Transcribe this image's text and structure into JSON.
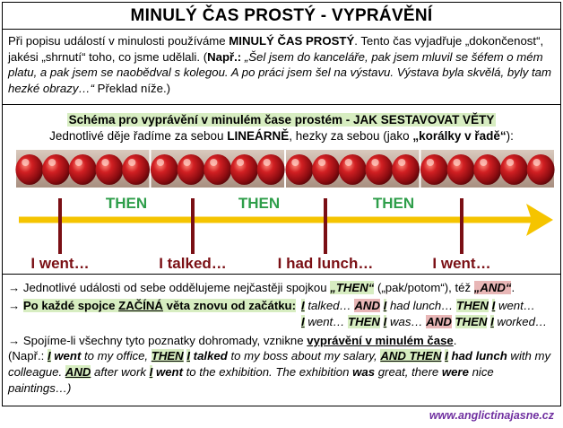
{
  "title": "MINULÝ ČAS PROSTÝ - VYPRÁVĚNÍ",
  "intro": {
    "p1": "Při popisu událostí v minulosti používáme ",
    "p1_bold": "MINULÝ ČAS PROSTÝ",
    "p2": ". Tento čas vyjadřuje „dokončenost“, jakési „shrnutí“ toho, co jsme udělali. (",
    "p2_bold": "Např.:",
    "p3_italic": " „Šel jsem do kanceláře, pak jsem mluvil se šéfem o mém platu, a pak jsem se naobědval s kolegou. A po práci jsem šel na výstavu. Výstava byla skvělá, byly tam hezké obrazy…“",
    "p4": " Překlad níže.)"
  },
  "schema": {
    "title": "Schéma pro vyprávění v minulém čase prostém - JAK SESTAVOVAT VĚTY",
    "sub1": "Jednotlivé děje řadíme za sebou ",
    "sub1_bold": "LINEÁRNĚ",
    "sub2": ", hezky za sebou (jako ",
    "sub2_bold": "„korálky v řadě“",
    "sub3": "):"
  },
  "timeline": {
    "then_labels": [
      "THEN",
      "THEN",
      "THEN"
    ],
    "event_labels": [
      "I went…",
      "I talked…",
      "I had lunch…",
      "I went…"
    ],
    "colors": {
      "arrow": "#f5c400",
      "then": "#2e9e4a",
      "tick": "#7a0f14",
      "bead": "#b8141c"
    }
  },
  "bottom": {
    "line1_a": "→ Jednotlivé události od sebe oddělujeme nejčastěji spojkou ",
    "line1_then": "„THEN“",
    "line1_b": " („pak/potom“), též ",
    "line1_and": "„AND“",
    "line1_c": ".",
    "line2_arrow": "→ ",
    "line2_hl": "Po každé spojce ",
    "line2_hl_ul": "ZAČÍNÁ",
    "line2_hl2": " věta znovu od začátku:",
    "ex_row1": [
      {
        "t": "I",
        "c": "boxi"
      },
      {
        "t": " talked… ",
        "c": "i"
      },
      {
        "t": "AND",
        "c": "red-hl"
      },
      {
        "t": " ",
        "c": ""
      },
      {
        "t": "I",
        "c": "boxi"
      },
      {
        "t": " had lunch… ",
        "c": "i"
      },
      {
        "t": "THEN",
        "c": "grn-i"
      },
      {
        "t": " ",
        "c": ""
      },
      {
        "t": "I",
        "c": "boxi"
      },
      {
        "t": " went…",
        "c": "i"
      }
    ],
    "ex_row2": [
      {
        "t": "I",
        "c": "boxi"
      },
      {
        "t": " went… ",
        "c": "i"
      },
      {
        "t": "THEN",
        "c": "grn-i"
      },
      {
        "t": " ",
        "c": ""
      },
      {
        "t": "I",
        "c": "boxi"
      },
      {
        "t": " was… ",
        "c": "i"
      },
      {
        "t": "AND",
        "c": "red-hl"
      },
      {
        "t": " ",
        "c": ""
      },
      {
        "t": "THEN",
        "c": "grn-i"
      },
      {
        "t": " ",
        "c": ""
      },
      {
        "t": "I",
        "c": "boxi"
      },
      {
        "t": " worked…",
        "c": "i"
      }
    ],
    "line3_a": "→ Spojíme-li všechny tyto poznatky dohromady, vznikne ",
    "line3_b": "vyprávění v minulém čase",
    "line3_c": ".",
    "example": [
      {
        "t": "(Např.: ",
        "c": ""
      },
      {
        "t": "I",
        "c": "boxi"
      },
      {
        "t": " went",
        "c": "bi"
      },
      {
        "t": " to my office, ",
        "c": "i"
      },
      {
        "t": "THEN",
        "c": "boxi"
      },
      {
        "t": " ",
        "c": ""
      },
      {
        "t": "I",
        "c": "boxi"
      },
      {
        "t": " talked",
        "c": "bi"
      },
      {
        "t": " to my boss about my salary, ",
        "c": "i"
      },
      {
        "t": "AND THEN",
        "c": "boxi"
      },
      {
        "t": " ",
        "c": ""
      },
      {
        "t": "I",
        "c": "boxi"
      },
      {
        "t": " had lunch",
        "c": "bi"
      },
      {
        "t": " with my colleague. ",
        "c": "i"
      },
      {
        "t": "AND",
        "c": "boxi"
      },
      {
        "t": " after work ",
        "c": "i"
      },
      {
        "t": "I",
        "c": "boxi"
      },
      {
        "t": " went",
        "c": "bi"
      },
      {
        "t": " to the exhibition. The exhibition ",
        "c": "i"
      },
      {
        "t": "was",
        "c": "bi"
      },
      {
        "t": " great, there ",
        "c": "i"
      },
      {
        "t": "were",
        "c": "bi"
      },
      {
        "t": " nice paintings…)",
        "c": "i"
      }
    ]
  },
  "footer": "www.anglictinajasne.cz"
}
